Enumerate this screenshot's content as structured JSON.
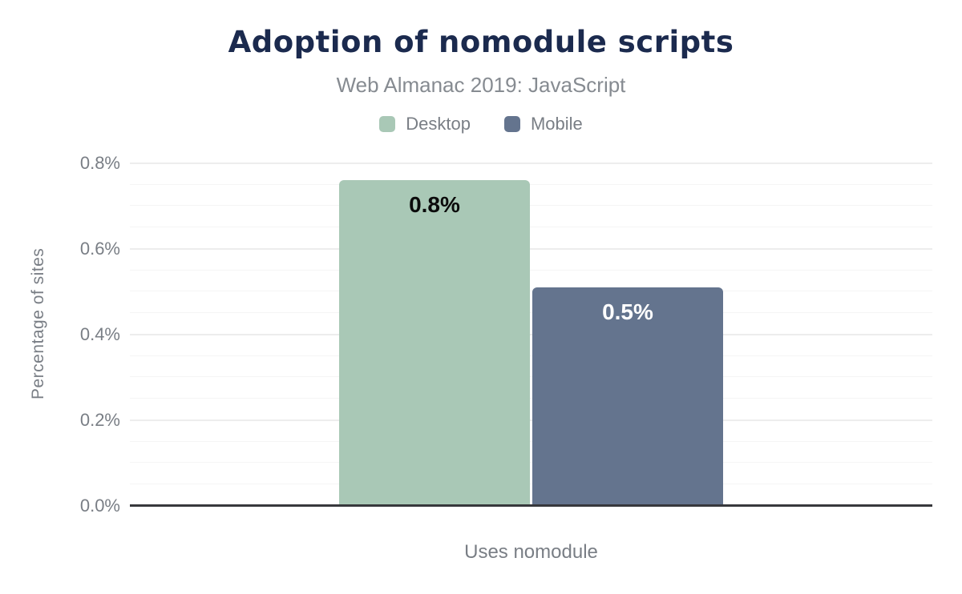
{
  "chart_data": {
    "type": "bar",
    "title": "Adoption of nomodule scripts",
    "subtitle": "Web Almanac 2019: JavaScript",
    "categories": [
      "Uses nomodule"
    ],
    "series": [
      {
        "name": "Desktop",
        "value": 0.76,
        "label": "0.8%",
        "color": "#a9c8b6",
        "label_color": "#0b0b0b"
      },
      {
        "name": "Mobile",
        "value": 0.51,
        "label": "0.5%",
        "color": "#64748e",
        "label_color": "#ffffff"
      }
    ],
    "xlabel": "",
    "ylabel": "Percentage of sites",
    "yticks": [
      {
        "value": 0.8,
        "label": "0.8%"
      },
      {
        "value": 0.6,
        "label": "0.6%"
      },
      {
        "value": 0.4,
        "label": "0.4%"
      },
      {
        "value": 0.2,
        "label": "0.2%"
      },
      {
        "value": 0.0,
        "label": "0.0%"
      }
    ],
    "ylim": [
      0,
      0.85
    ],
    "minor_grid_step": 0.05,
    "grid": true,
    "legend_position": "top"
  },
  "colors": {
    "title": "#1b2a4e",
    "subtitle": "#868b91",
    "text_muted": "#797e85",
    "grid_major": "#ededed",
    "grid_minor": "#f5f5f5",
    "axis_line": "#37383c",
    "desktop": "#a9c8b6",
    "mobile": "#64748e"
  }
}
